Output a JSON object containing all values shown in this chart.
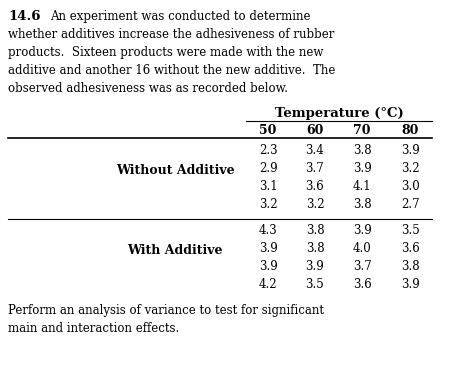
{
  "problem_number": "14.6",
  "intro_lines": [
    "An experiment was conducted to determine",
    "whether additives increase the adhesiveness of rubber",
    "products.  Sixteen products were made with the new",
    "additive and another 16 without the new additive.  The",
    "observed adhesiveness was as recorded below."
  ],
  "table_header": "Temperature (°C)",
  "col_headers": [
    "50",
    "60",
    "70",
    "80"
  ],
  "row_group1_label": "Without Additive",
  "row_group2_label": "With Additive",
  "group1_data": [
    [
      "2.3",
      "3.4",
      "3.8",
      "3.9"
    ],
    [
      "2.9",
      "3.7",
      "3.9",
      "3.2"
    ],
    [
      "3.1",
      "3.6",
      "4.1",
      "3.0"
    ],
    [
      "3.2",
      "3.2",
      "3.8",
      "2.7"
    ]
  ],
  "group2_data": [
    [
      "4.3",
      "3.8",
      "3.9",
      "3.5"
    ],
    [
      "3.9",
      "3.8",
      "4.0",
      "3.6"
    ],
    [
      "3.9",
      "3.9",
      "3.7",
      "3.8"
    ],
    [
      "4.2",
      "3.5",
      "3.6",
      "3.9"
    ]
  ],
  "footer_lines": [
    "Perform an analysis of variance to test for significant",
    "main and interaction effects."
  ],
  "bg_color": "#ffffff",
  "text_color": "#000000",
  "font_size_body": 8.5,
  "font_size_bold": 9.0,
  "font_size_number": 9.5
}
